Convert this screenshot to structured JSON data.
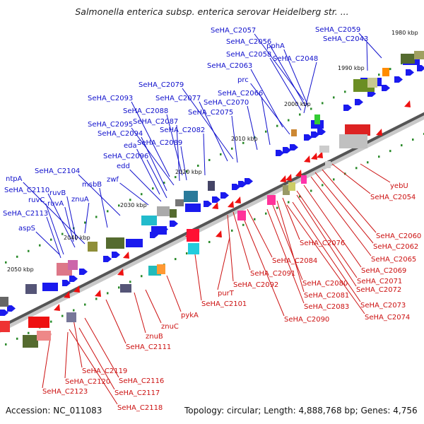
{
  "title": "Salmonella enterica subsp. enterica serovar Heidelberg str. ...",
  "footer": {
    "accession": "Accession: NC_011083",
    "summary": "Topology: circular; Length: 4,888,768 bp; Genes: 4,756"
  },
  "colors": {
    "plus_strand_label": "#1010cc",
    "minus_strand_label": "#cc1111",
    "backbone": "#555555"
  },
  "ticks": [
    "1980 kbp",
    "1990 kbp",
    "2000 kbp",
    "2010 kbp",
    "2020 kbp",
    "2030 kbp",
    "2040 kbp",
    "2050 kbp"
  ],
  "top_labels": [
    "SeHA_C2057",
    "SeHA_C2056",
    "pphA",
    "SeHA_C2058",
    "SeHA_C2048",
    "SeHA_C2063",
    "SeHA_C2059",
    "SeHA_C2043",
    "prc",
    "SeHA_C2079",
    "SeHA_C2077",
    "SeHA_C2066",
    "SeHA_C2070",
    "SeHA_C2093",
    "SeHA_C2088",
    "SeHA_C2075",
    "SeHA_C2087",
    "SeHA_C2095",
    "SeHA_C2082",
    "SeHA_C2094",
    "eda",
    "SeHA_C2089",
    "SeHA_C2096",
    "edd",
    "SeHA_C2104",
    "msbB",
    "zwf",
    "ntpA",
    "SeHA_C2110",
    "ruvB",
    "ruvC",
    "znuA",
    "ruvA",
    "SeHA_C2113",
    "aspS"
  ],
  "bottom_labels": [
    "yebU",
    "SeHA_C2054",
    "SeHA_C2060",
    "SeHA_C2062",
    "SeHA_C2076",
    "SeHA_C2065",
    "SeHA_C2084",
    "SeHA_C2069",
    "SeHA_C2091",
    "SeHA_C2071",
    "SeHA_C2092",
    "SeHA_C2080",
    "SeHA_C2072",
    "purT",
    "SeHA_C2081",
    "SeHA_C2073",
    "SeHA_C2101",
    "SeHA_C2083",
    "SeHA_C2074",
    "SeHA_C2090",
    "pykA",
    "znuC",
    "znuB",
    "SeHA_C2111",
    "SeHA_C2119",
    "SeHA_C2116",
    "SeHA_C2120",
    "SeHA_C2123",
    "SeHA_C2117",
    "SeHA_C2118"
  ]
}
